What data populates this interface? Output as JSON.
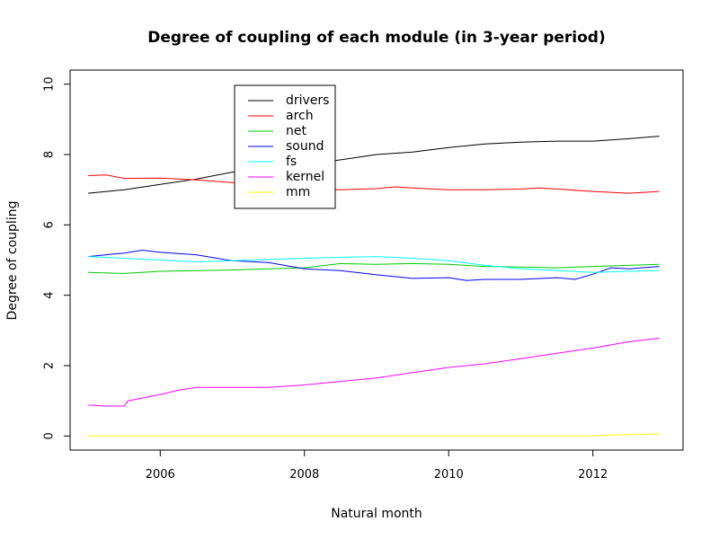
{
  "chart_data": {
    "type": "line",
    "title": "Degree of coupling of each module (in 3-year period)",
    "xlabel": "Natural month",
    "ylabel": "Degree of coupling",
    "xlim": [
      2004.75,
      2013.25
    ],
    "ylim": [
      -0.4,
      10.4
    ],
    "x_ticks": [
      2006,
      2008,
      2010,
      2012
    ],
    "y_ticks": [
      0,
      2,
      4,
      6,
      8,
      10
    ],
    "legend_position": "top-left",
    "grid": false,
    "series": [
      {
        "name": "drivers",
        "color": "#000000",
        "x": [
          2005.0,
          2005.5,
          2006.0,
          2006.5,
          2007.0,
          2007.5,
          2008.0,
          2008.5,
          2009.0,
          2009.5,
          2010.0,
          2010.5,
          2011.0,
          2011.5,
          2012.0,
          2012.5,
          2012.92
        ],
        "y": [
          6.9,
          7.0,
          7.15,
          7.3,
          7.5,
          7.6,
          7.7,
          7.85,
          8.0,
          8.07,
          8.2,
          8.3,
          8.35,
          8.38,
          8.38,
          8.45,
          8.52
        ]
      },
      {
        "name": "arch",
        "color": "#ff0000",
        "x": [
          2005.0,
          2005.25,
          2005.5,
          2006.0,
          2006.5,
          2007.0,
          2007.5,
          2008.0,
          2008.5,
          2009.0,
          2009.25,
          2009.5,
          2010.0,
          2010.5,
          2011.0,
          2011.25,
          2011.5,
          2012.0,
          2012.5,
          2012.92
        ],
        "y": [
          7.4,
          7.42,
          7.32,
          7.33,
          7.28,
          7.2,
          7.12,
          7.03,
          7.0,
          7.03,
          7.08,
          7.05,
          7.0,
          7.0,
          7.02,
          7.05,
          7.02,
          6.95,
          6.9,
          6.95
        ]
      },
      {
        "name": "net",
        "color": "#00cc00",
        "x": [
          2005.0,
          2005.5,
          2006.0,
          2006.5,
          2007.0,
          2007.5,
          2008.0,
          2008.5,
          2009.0,
          2009.5,
          2010.0,
          2010.5,
          2011.0,
          2011.5,
          2012.0,
          2012.5,
          2012.92
        ],
        "y": [
          4.65,
          4.62,
          4.68,
          4.7,
          4.72,
          4.75,
          4.78,
          4.9,
          4.88,
          4.9,
          4.88,
          4.82,
          4.8,
          4.78,
          4.82,
          4.85,
          4.88
        ]
      },
      {
        "name": "sound",
        "color": "#0000ff",
        "x": [
          2005.0,
          2005.25,
          2005.5,
          2005.75,
          2006.0,
          2006.5,
          2007.0,
          2007.5,
          2008.0,
          2008.5,
          2009.0,
          2009.5,
          2010.0,
          2010.25,
          2010.5,
          2011.0,
          2011.5,
          2011.75,
          2012.0,
          2012.25,
          2012.5,
          2012.92
        ],
        "y": [
          5.1,
          5.15,
          5.2,
          5.28,
          5.22,
          5.15,
          4.98,
          4.93,
          4.75,
          4.7,
          4.58,
          4.48,
          4.5,
          4.42,
          4.45,
          4.45,
          4.5,
          4.45,
          4.6,
          4.78,
          4.75,
          4.82
        ]
      },
      {
        "name": "fs",
        "color": "#00ffff",
        "x": [
          2005.0,
          2005.5,
          2006.0,
          2006.5,
          2007.0,
          2007.5,
          2008.0,
          2008.5,
          2009.0,
          2009.5,
          2010.0,
          2010.5,
          2011.0,
          2011.5,
          2012.0,
          2012.5,
          2012.92
        ],
        "y": [
          5.1,
          5.05,
          5.0,
          4.95,
          4.98,
          5.02,
          5.05,
          5.08,
          5.1,
          5.05,
          4.98,
          4.85,
          4.75,
          4.7,
          4.65,
          4.68,
          4.7
        ]
      },
      {
        "name": "kernel",
        "color": "#ff00ff",
        "x": [
          2005.0,
          2005.25,
          2005.5,
          2005.55,
          2006.0,
          2006.25,
          2006.5,
          2007.0,
          2007.5,
          2008.0,
          2008.5,
          2009.0,
          2009.5,
          2010.0,
          2010.5,
          2011.0,
          2011.5,
          2012.0,
          2012.5,
          2012.92
        ],
        "y": [
          0.88,
          0.85,
          0.85,
          1.0,
          1.18,
          1.3,
          1.38,
          1.38,
          1.38,
          1.45,
          1.55,
          1.65,
          1.8,
          1.95,
          2.05,
          2.2,
          2.35,
          2.5,
          2.68,
          2.78
        ]
      },
      {
        "name": "mm",
        "color": "#ffff00",
        "x": [
          2005.0,
          2006.0,
          2007.0,
          2008.0,
          2009.0,
          2010.0,
          2011.0,
          2012.0,
          2012.25,
          2012.5,
          2012.92
        ],
        "y": [
          0.0,
          0.0,
          0.0,
          0.0,
          0.0,
          0.0,
          0.0,
          0.0,
          0.03,
          0.04,
          0.06
        ]
      }
    ]
  }
}
